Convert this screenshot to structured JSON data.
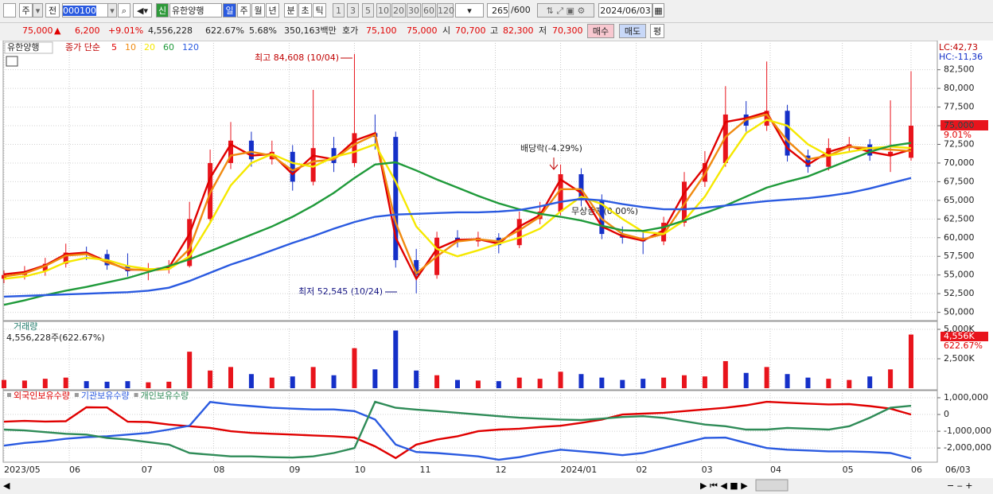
{
  "toolbar": {
    "period": "주",
    "prev": "전",
    "code": "000100",
    "new_badge": "신",
    "name": "유한양행",
    "units": [
      "일",
      "주",
      "월",
      "년",
      "분",
      "초",
      "틱"
    ],
    "intervals": [
      "1",
      "3",
      "5",
      "10",
      "20",
      "30",
      "60",
      "120"
    ],
    "count": "265",
    "max_count": "/600",
    "date": "2024/06/03"
  },
  "quote": {
    "price": "75,000",
    "arrow": "▲",
    "change": "6,200",
    "change_pct": "+9.01%",
    "volume": "4,556,228",
    "volume_pct": "622.67%",
    "turnover": "5.68%",
    "amount": "350,163백만",
    "bid_label": "호가",
    "ask": "75,100",
    "bid": "75,000",
    "open_label": "시",
    "open": "70,700",
    "high_label": "고",
    "high": "82,300",
    "low_label": "저",
    "low": "70,300",
    "buy": "매수",
    "sell": "매도",
    "avg": "평"
  },
  "chart_data": [
    {
      "type": "candlestick",
      "title": "유한양행",
      "legend_title": "종가 단순",
      "lc": "LC:42,73",
      "hc": "HC:-11,36",
      "last_label": "75,000",
      "last_change": "9.01%",
      "annotations": [
        "최고 84,608 (10/04)",
        "최저 52,545 (10/24)",
        "배당락(-4.29%)",
        "무상증자(0.00%)"
      ],
      "up_color": "#e8141c",
      "down_color": "#1530c8",
      "grid": true,
      "x": [
        0,
        6,
        12,
        18,
        24,
        30,
        36,
        42,
        48,
        54,
        60,
        66,
        72,
        78,
        84,
        90,
        96,
        102,
        108,
        114,
        120,
        126,
        132,
        138,
        144,
        150,
        156,
        162,
        168,
        174,
        180,
        186,
        192,
        198,
        204,
        210,
        216,
        222,
        228,
        234,
        240,
        246,
        252,
        258,
        264
      ],
      "xlim": [
        0,
        264
      ],
      "open": [
        54500,
        55000,
        55500,
        56500,
        58000,
        57800,
        56300,
        55500,
        55800,
        56200,
        62500,
        70000,
        73000,
        70500,
        71500,
        67500,
        72000,
        70000,
        74000,
        73500,
        57000,
        55000,
        60000,
        59500,
        60000,
        59000,
        62500,
        63500,
        68500,
        65000,
        60500,
        60000,
        59500,
        62000,
        67500,
        70000,
        76500,
        75000,
        77000,
        71000,
        69500,
        72000,
        72500,
        71000,
        70700
      ],
      "high": [
        55600,
        56200,
        57300,
        59200,
        58800,
        58400,
        57900,
        56600,
        57000,
        64800,
        71800,
        75500,
        74200,
        73000,
        72400,
        79800,
        73500,
        84608,
        76500,
        74200,
        58500,
        60800,
        61000,
        60800,
        60600,
        63500,
        64800,
        69800,
        69300,
        65800,
        61500,
        60900,
        62800,
        68800,
        71600,
        80300,
        78300,
        83600,
        77800,
        71800,
        73300,
        73500,
        73200,
        78400,
        82300
      ],
      "low": [
        53900,
        54400,
        54900,
        56000,
        57000,
        55700,
        54800,
        54300,
        55200,
        56000,
        62000,
        69200,
        69500,
        69800,
        66300,
        67000,
        68800,
        69500,
        71800,
        56000,
        52545,
        54500,
        58700,
        58800,
        57900,
        58600,
        61800,
        63000,
        64200,
        59800,
        59200,
        57800,
        59000,
        61500,
        66800,
        69500,
        74200,
        74300,
        70200,
        68700,
        69000,
        71500,
        70300,
        68800,
        70300
      ],
      "close": [
        55000,
        55500,
        56500,
        58000,
        57800,
        56300,
        55500,
        55800,
        56200,
        62500,
        70000,
        73000,
        70500,
        71500,
        67500,
        72000,
        70000,
        74000,
        73500,
        57000,
        55000,
        60000,
        59500,
        60000,
        59000,
        62500,
        63500,
        68500,
        65000,
        60500,
        60000,
        59500,
        62000,
        67500,
        70000,
        76500,
        75000,
        77000,
        71000,
        69500,
        72000,
        72500,
        71000,
        71500,
        75000
      ],
      "series": [
        {
          "name": "5",
          "color": "#e00000",
          "values": [
            55100,
            55400,
            56300,
            57800,
            58000,
            56800,
            55700,
            55700,
            56000,
            60500,
            68000,
            72500,
            71000,
            71200,
            68500,
            71000,
            70500,
            73000,
            74000,
            60000,
            54500,
            58500,
            59700,
            59800,
            59200,
            61500,
            63000,
            67800,
            66000,
            61500,
            60200,
            59600,
            61000,
            66000,
            69500,
            75500,
            76000,
            76800,
            72000,
            69800,
            71500,
            72300,
            71500,
            71000,
            71800
          ]
        },
        {
          "name": "10",
          "color": "#f08a10",
          "values": [
            54800,
            55200,
            56200,
            57600,
            57800,
            56700,
            55800,
            55600,
            55800,
            58500,
            66000,
            71000,
            71500,
            71000,
            69000,
            70200,
            70500,
            72500,
            73800,
            62000,
            55200,
            57500,
            59500,
            59800,
            59500,
            61000,
            62800,
            66500,
            66500,
            62500,
            60500,
            59800,
            60500,
            64500,
            68500,
            73500,
            75800,
            76500,
            73000,
            70500,
            71000,
            72200,
            72000,
            71800,
            71600
          ]
        },
        {
          "name": "20",
          "color": "#f5e800",
          "values": [
            54500,
            54800,
            55500,
            56700,
            57300,
            57000,
            56200,
            55800,
            55800,
            57500,
            62000,
            67000,
            70000,
            71200,
            70000,
            69500,
            70800,
            71500,
            72500,
            67500,
            61500,
            58500,
            57500,
            58300,
            59200,
            60000,
            61200,
            63500,
            65500,
            64500,
            62500,
            60800,
            60500,
            62300,
            65500,
            70000,
            74000,
            75800,
            75000,
            72500,
            71000,
            71500,
            72000,
            72200,
            72000
          ]
        },
        {
          "name": "60",
          "color": "#1f9a3a",
          "values": [
            51000,
            51600,
            52300,
            52900,
            53400,
            54000,
            54600,
            55400,
            56200,
            57100,
            58200,
            59300,
            60400,
            61500,
            62800,
            64300,
            66000,
            68000,
            69800,
            70100,
            69000,
            67800,
            66700,
            65600,
            64600,
            63800,
            63200,
            62800,
            62300,
            61600,
            61000,
            60900,
            61400,
            62300,
            63300,
            64300,
            65500,
            66700,
            67500,
            68200,
            69300,
            70400,
            71500,
            72300,
            72700
          ]
        },
        {
          "name": "120",
          "color": "#2a5ae0",
          "values": [
            52100,
            52200,
            52300,
            52400,
            52500,
            52600,
            52700,
            52900,
            53300,
            54200,
            55300,
            56400,
            57300,
            58300,
            59300,
            60200,
            61200,
            62100,
            62800,
            63100,
            63200,
            63300,
            63400,
            63400,
            63500,
            63700,
            64200,
            64800,
            65200,
            65000,
            64500,
            64100,
            63800,
            63800,
            64000,
            64300,
            64600,
            64900,
            65100,
            65300,
            65600,
            66000,
            66600,
            67300,
            68000
          ]
        }
      ],
      "ylim": [
        49000,
        86300
      ],
      "yticks": [
        {
          "value": 50000,
          "label": "50,000"
        },
        {
          "value": 52500,
          "label": "52,500"
        },
        {
          "value": 55000,
          "label": "55,000"
        },
        {
          "value": 57500,
          "label": "57,500"
        },
        {
          "value": 60000,
          "label": "60,000"
        },
        {
          "value": 62500,
          "label": "62,500"
        },
        {
          "value": 65000,
          "label": "65,000"
        },
        {
          "value": 67500,
          "label": "67,500"
        },
        {
          "value": 70000,
          "label": "70,000"
        },
        {
          "value": 72500,
          "label": "72,500"
        },
        {
          "value": 75000,
          "label": "75,000"
        },
        {
          "value": 77500,
          "label": "77,500"
        },
        {
          "value": 80000,
          "label": "80,000"
        },
        {
          "value": 82500,
          "label": "82,500"
        }
      ]
    },
    {
      "type": "bar",
      "title": "거래량",
      "subtitle": "4,556,228주(622.67%)",
      "last_label": "4,556K",
      "last_change": "622.67%",
      "up_color": "#e8141c",
      "down_color": "#1530c8",
      "grid": true,
      "x": [
        0,
        6,
        12,
        18,
        24,
        30,
        36,
        42,
        48,
        54,
        60,
        66,
        72,
        78,
        84,
        90,
        96,
        102,
        108,
        114,
        120,
        126,
        132,
        138,
        144,
        150,
        156,
        162,
        168,
        174,
        180,
        186,
        192,
        198,
        204,
        210,
        216,
        222,
        228,
        234,
        240,
        246,
        252,
        258,
        264
      ],
      "xlim": [
        0,
        264
      ],
      "values": [
        700000,
        650000,
        800000,
        900000,
        600000,
        550000,
        600000,
        500000,
        550000,
        3100000,
        1500000,
        1800000,
        1200000,
        900000,
        1000000,
        1800000,
        1100000,
        3400000,
        1600000,
        4900000,
        1500000,
        1100000,
        700000,
        650000,
        600000,
        900000,
        800000,
        1400000,
        1200000,
        900000,
        700000,
        800000,
        900000,
        1100000,
        1000000,
        2300000,
        1300000,
        1800000,
        1200000,
        900000,
        800000,
        700000,
        1000000,
        1600000,
        4556228
      ],
      "ylim": [
        0,
        5000000
      ],
      "yticks": [
        {
          "value": 2500000,
          "label": "2,500K"
        },
        {
          "value": 5000000,
          "label": "5,000K"
        }
      ]
    },
    {
      "type": "line",
      "cursor_date": "06/03",
      "grid": true,
      "x": [
        0,
        6,
        12,
        18,
        24,
        30,
        36,
        42,
        48,
        54,
        60,
        66,
        72,
        78,
        84,
        90,
        96,
        102,
        108,
        114,
        120,
        126,
        132,
        138,
        144,
        150,
        156,
        162,
        168,
        174,
        180,
        186,
        192,
        198,
        204,
        210,
        216,
        222,
        228,
        234,
        240,
        246,
        252,
        258,
        264
      ],
      "xlim": [
        0,
        264
      ],
      "xticks": [
        {
          "value": 0,
          "label": "2023/05"
        },
        {
          "value": 19,
          "label": "06"
        },
        {
          "value": 40,
          "label": "07"
        },
        {
          "value": 61,
          "label": "08"
        },
        {
          "value": 83,
          "label": "09"
        },
        {
          "value": 102,
          "label": "10"
        },
        {
          "value": 121,
          "label": "11"
        },
        {
          "value": 143,
          "label": "12"
        },
        {
          "value": 162,
          "label": "2024/01"
        },
        {
          "value": 184,
          "label": "02"
        },
        {
          "value": 203,
          "label": "03"
        },
        {
          "value": 223,
          "label": "04"
        },
        {
          "value": 244,
          "label": "05"
        },
        {
          "value": 264,
          "label": "06"
        }
      ],
      "series": [
        {
          "name": "외국인보유수량",
          "color": "#e00000",
          "values": [
            -430000,
            -380000,
            -420000,
            -400000,
            430000,
            420000,
            -430000,
            -450000,
            -600000,
            -700000,
            -800000,
            -1000000,
            -1100000,
            -1150000,
            -1200000,
            -1250000,
            -1300000,
            -1380000,
            -1900000,
            -2600000,
            -1800000,
            -1500000,
            -1300000,
            -1000000,
            -900000,
            -850000,
            -750000,
            -670000,
            -500000,
            -300000,
            0,
            50000,
            100000,
            200000,
            300000,
            400000,
            550000,
            760000,
            700000,
            650000,
            600000,
            620000,
            500000,
            350000,
            0
          ]
        },
        {
          "name": "기관보유수량",
          "color": "#2a5ae0",
          "values": [
            -1860000,
            -1700000,
            -1600000,
            -1450000,
            -1350000,
            -1300000,
            -1200000,
            -1100000,
            -900000,
            -670000,
            750000,
            600000,
            500000,
            400000,
            350000,
            300000,
            300000,
            200000,
            -300000,
            -1800000,
            -2240000,
            -2300000,
            -2400000,
            -2500000,
            -2700000,
            -2550000,
            -2300000,
            -2100000,
            -2200000,
            -2300000,
            -2430000,
            -2300000,
            -2000000,
            -1700000,
            -1400000,
            -1380000,
            -1700000,
            -2000000,
            -2100000,
            -2150000,
            -2200000,
            -2200000,
            -2240000,
            -2300000,
            -2620000
          ]
        },
        {
          "name": "개인보유수량",
          "color": "#2e8b57",
          "values": [
            -900000,
            -950000,
            -1050000,
            -1150000,
            -1200000,
            -1400000,
            -1500000,
            -1650000,
            -1800000,
            -2300000,
            -2400000,
            -2500000,
            -2500000,
            -2550000,
            -2570000,
            -2500000,
            -2300000,
            -2000000,
            760000,
            400000,
            290000,
            200000,
            100000,
            0,
            -100000,
            -190000,
            -250000,
            -300000,
            -330000,
            -250000,
            -150000,
            -100000,
            -200000,
            -400000,
            -600000,
            -700000,
            -900000,
            -900000,
            -800000,
            -850000,
            -900000,
            -700000,
            -190000,
            400000,
            520000
          ]
        }
      ],
      "ylim": [
        -2800000,
        1380000
      ],
      "yticks": [
        {
          "value": 1000000,
          "label": "1,000,000"
        },
        0,
        {
          "value": -1000000,
          "label": "-1,000,000"
        },
        {
          "value": -2000000,
          "label": "-2,000,000"
        }
      ]
    }
  ]
}
